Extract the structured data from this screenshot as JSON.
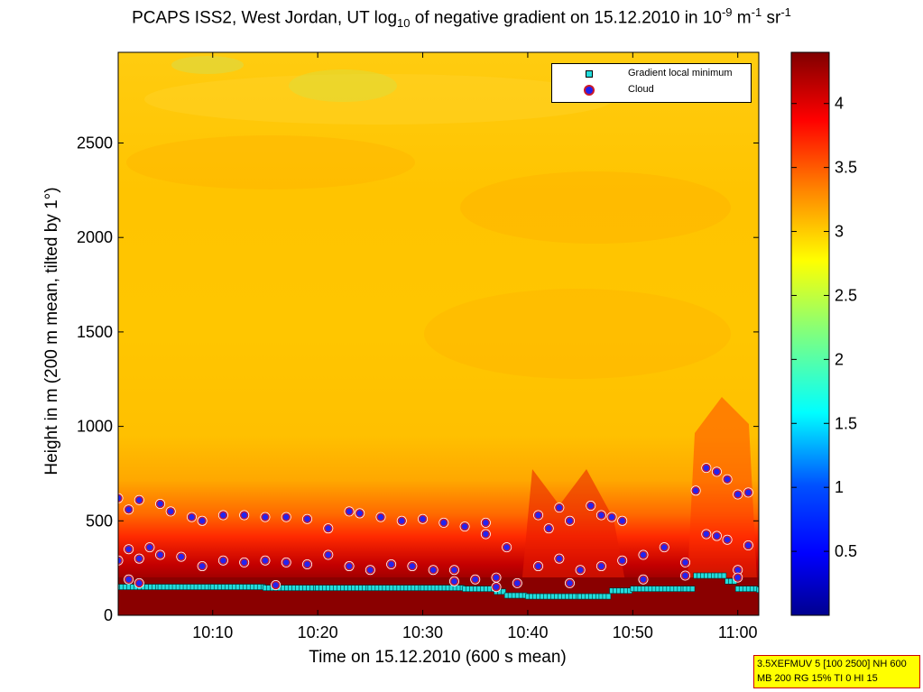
{
  "title": {
    "text_main": "PCAPS ISS2, West Jordan, UT log",
    "text_sub": "10",
    "text_mid": " of negative gradient on 15.12.2010 in 10",
    "text_sup1": "-9",
    "text_unit1": " m",
    "text_sup2": "-1",
    "text_unit2": " sr",
    "text_sup3": "-1"
  },
  "xlabel": "Time on 15.12.2010 (600 s mean)",
  "ylabel": "Height in m (200 m mean, tilted by 1°)",
  "legend": {
    "items": [
      {
        "label": "Gradient local minimum",
        "marker": "square",
        "color": "#22dddd"
      },
      {
        "label": "Cloud",
        "marker": "circle",
        "color": "#2020ee",
        "edge": "#cc1a2a"
      }
    ],
    "position": "top-right"
  },
  "stamp": {
    "line1": "3.5XEFMUV 5 [100 2500] NH 600",
    "line2": "MB 200 RG 15% TI 0 HI 15"
  },
  "chart_data": {
    "type": "heatmap",
    "title": "PCAPS ISS2, West Jordan, UT log10 of negative gradient on 15.12.2010 in 10^-9 m^-1 sr^-1",
    "xlabel": "Time on 15.12.2010 (600 s mean)",
    "ylabel": "Height in m (200 m mean, tilted by 1°)",
    "xlim": [
      "10:01",
      "11:02"
    ],
    "ylim": [
      0,
      2980
    ],
    "xticks": [
      "10:10",
      "10:20",
      "10:30",
      "10:40",
      "10:50",
      "11:00"
    ],
    "yticks": [
      0,
      500,
      1000,
      1500,
      2000,
      2500
    ],
    "colorbar": {
      "range": [
        0,
        4.4
      ],
      "ticks": [
        0.5,
        1,
        1.5,
        2,
        2.5,
        3,
        3.5,
        4
      ],
      "colormap": "jet"
    },
    "field_description": {
      "surface_layer_height_m": 150,
      "surface_value": 4.4,
      "mixed_red_layer_top_m": 600,
      "free_atmosphere_value": 3.0
    },
    "series": [
      {
        "name": "Gradient local minimum",
        "marker": "square",
        "points": [
          [
            "10:01",
            150
          ],
          [
            "10:05",
            150
          ],
          [
            "10:10",
            150
          ],
          [
            "10:15",
            145
          ],
          [
            "10:20",
            145
          ],
          [
            "10:25",
            145
          ],
          [
            "10:30",
            145
          ],
          [
            "10:34",
            140
          ],
          [
            "10:37",
            125
          ],
          [
            "10:38",
            105
          ],
          [
            "10:40",
            100
          ],
          [
            "10:45",
            100
          ],
          [
            "10:47",
            100
          ],
          [
            "10:48",
            130
          ],
          [
            "10:50",
            140
          ],
          [
            "10:55",
            140
          ],
          [
            "10:56",
            210
          ],
          [
            "10:58",
            210
          ],
          [
            "10:59",
            180
          ],
          [
            "11:00",
            140
          ],
          [
            "11:02",
            135
          ]
        ]
      },
      {
        "name": "Cloud",
        "marker": "circle",
        "points": [
          [
            "10:01",
            620
          ],
          [
            "10:02",
            560
          ],
          [
            "10:03",
            610
          ],
          [
            "10:05",
            590
          ],
          [
            "10:06",
            550
          ],
          [
            "10:08",
            520
          ],
          [
            "10:09",
            500
          ],
          [
            "10:11",
            530
          ],
          [
            "10:13",
            530
          ],
          [
            "10:15",
            520
          ],
          [
            "10:17",
            520
          ],
          [
            "10:19",
            510
          ],
          [
            "10:21",
            460
          ],
          [
            "10:23",
            550
          ],
          [
            "10:24",
            540
          ],
          [
            "10:26",
            520
          ],
          [
            "10:28",
            500
          ],
          [
            "10:30",
            510
          ],
          [
            "10:32",
            490
          ],
          [
            "10:34",
            470
          ],
          [
            "10:36",
            490
          ],
          [
            "10:36",
            430
          ],
          [
            "10:38",
            360
          ],
          [
            "10:41",
            530
          ],
          [
            "10:42",
            460
          ],
          [
            "10:43",
            570
          ],
          [
            "10:44",
            500
          ],
          [
            "10:46",
            580
          ],
          [
            "10:47",
            530
          ],
          [
            "10:48",
            520
          ],
          [
            "10:49",
            500
          ],
          [
            "10:56",
            660
          ],
          [
            "10:57",
            780
          ],
          [
            "10:58",
            760
          ],
          [
            "10:59",
            720
          ],
          [
            "11:00",
            640
          ],
          [
            "11:01",
            650
          ],
          [
            "10:01",
            290
          ],
          [
            "10:02",
            350
          ],
          [
            "10:03",
            300
          ],
          [
            "10:04",
            360
          ],
          [
            "10:05",
            320
          ],
          [
            "10:07",
            310
          ],
          [
            "10:09",
            260
          ],
          [
            "10:11",
            290
          ],
          [
            "10:13",
            280
          ],
          [
            "10:15",
            290
          ],
          [
            "10:17",
            280
          ],
          [
            "10:19",
            270
          ],
          [
            "10:21",
            320
          ],
          [
            "10:23",
            260
          ],
          [
            "10:25",
            240
          ],
          [
            "10:27",
            270
          ],
          [
            "10:29",
            260
          ],
          [
            "10:31",
            240
          ],
          [
            "10:33",
            240
          ],
          [
            "10:35",
            190
          ],
          [
            "10:37",
            200
          ],
          [
            "10:39",
            170
          ],
          [
            "10:41",
            260
          ],
          [
            "10:43",
            300
          ],
          [
            "10:45",
            240
          ],
          [
            "10:47",
            260
          ],
          [
            "10:49",
            290
          ],
          [
            "10:51",
            320
          ],
          [
            "10:53",
            360
          ],
          [
            "10:55",
            280
          ],
          [
            "10:57",
            430
          ],
          [
            "10:58",
            420
          ],
          [
            "10:59",
            400
          ],
          [
            "11:00",
            240
          ],
          [
            "11:01",
            370
          ],
          [
            "10:02",
            190
          ],
          [
            "10:03",
            170
          ],
          [
            "10:16",
            160
          ],
          [
            "10:33",
            180
          ],
          [
            "10:37",
            150
          ],
          [
            "10:44",
            170
          ],
          [
            "10:51",
            190
          ],
          [
            "10:55",
            210
          ],
          [
            "11:00",
            200
          ]
        ]
      }
    ]
  }
}
